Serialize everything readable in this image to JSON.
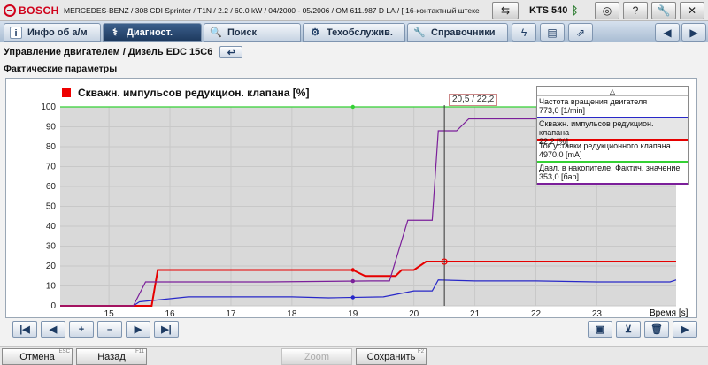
{
  "titlebar": {
    "brand": "BOSCH",
    "vehicle": "MERCEDES-BENZ / 308 CDI Sprinter / T1N / 2.2 / 60.0 kW / 04/2000 - 05/2006 / OM 611.987 D LA / [ 16-контактный штекер OBD ]",
    "device": "KTS 540"
  },
  "tabs": [
    {
      "label": "Инфо об а/м"
    },
    {
      "label": "Диагност."
    },
    {
      "label": "Поиск"
    },
    {
      "label": "Техобслужив."
    },
    {
      "label": "Справочники"
    }
  ],
  "section": {
    "title": "Управление двигателем / Дизель EDC 15C6",
    "subtitle": "Фактические параметры"
  },
  "chart_data": {
    "type": "line",
    "title": "Скважн. импульсов редукцион. клапана [%]",
    "xlabel": "Время [s]",
    "ylabel": "",
    "xlim": [
      14.2,
      24.3
    ],
    "ylim": [
      0,
      100
    ],
    "x_ticks": [
      15,
      16,
      17,
      18,
      19,
      20,
      21,
      22,
      23
    ],
    "y_ticks": [
      0,
      10,
      20,
      30,
      40,
      50,
      60,
      70,
      80,
      90,
      100
    ],
    "grid": true,
    "cursor": {
      "x": 20.5,
      "label": "20,5 / 22,2"
    },
    "series": [
      {
        "name": "Частота вращения двигателя",
        "value_text": "773,0 [1/min]",
        "color": "#2828c8",
        "x": [
          14.2,
          15.4,
          15.5,
          16.3,
          18.0,
          18.6,
          19.5,
          20.0,
          20.3,
          20.4,
          21.0,
          22.0,
          23.0,
          24.2,
          24.3
        ],
        "y": [
          0,
          0,
          2.0,
          4.5,
          4.5,
          4.0,
          4.5,
          7.5,
          7.5,
          13.0,
          12.5,
          12.5,
          12.0,
          12.0,
          13.0
        ]
      },
      {
        "name": "Скважн. импульсов редукцион. клапана",
        "value_text": "22,2 [%]",
        "color": "#e60000",
        "x": [
          14.2,
          15.4,
          15.7,
          15.8,
          19.0,
          19.2,
          19.7,
          19.8,
          20.0,
          20.2,
          24.3
        ],
        "y": [
          0,
          0,
          0,
          18.0,
          18.0,
          15.0,
          15.0,
          18.0,
          18.0,
          22.2,
          22.2
        ]
      },
      {
        "name": "Ток уставки редукционного клапана",
        "value_text": "4970,0 [mA]",
        "color": "#35d135",
        "x": [
          14.2,
          24.3
        ],
        "y": [
          100,
          100
        ]
      },
      {
        "name": "Давл. в накопителе. Фактич. значение",
        "value_text": "353,0 [бар]",
        "color": "#7b1f9a",
        "x": [
          14.2,
          15.4,
          15.6,
          17.6,
          19.3,
          19.6,
          19.9,
          20.1,
          20.3,
          20.4,
          20.7,
          20.9,
          24.3
        ],
        "y": [
          0,
          0,
          12.0,
          12.0,
          12.5,
          12.5,
          43.0,
          43.0,
          43.0,
          88.0,
          88.0,
          94.0,
          94.0
        ]
      }
    ]
  },
  "controls": {
    "add": "+",
    "remove": "–"
  },
  "footer": {
    "cancel": "Отмена",
    "cancel_key": "ESC",
    "back": "Назад",
    "back_key": "F11",
    "zoom": "Zoom",
    "save": "Сохранить",
    "save_key": "F2"
  }
}
